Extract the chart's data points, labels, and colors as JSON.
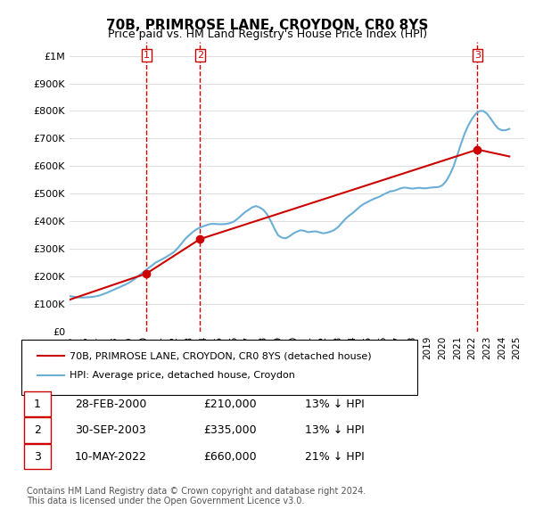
{
  "title": "70B, PRIMROSE LANE, CROYDON, CR0 8YS",
  "subtitle": "Price paid vs. HM Land Registry's House Price Index (HPI)",
  "xlabel": "",
  "ylabel": "",
  "ylim": [
    0,
    1050000
  ],
  "xlim_start": 1995.0,
  "xlim_end": 2025.5,
  "yticks": [
    0,
    100000,
    200000,
    300000,
    400000,
    500000,
    600000,
    700000,
    800000,
    900000,
    1000000
  ],
  "ytick_labels": [
    "£0",
    "£100K",
    "£200K",
    "£300K",
    "£400K",
    "£500K",
    "£600K",
    "£700K",
    "£800K",
    "£900K",
    "£1M"
  ],
  "xticks": [
    1995,
    1996,
    1997,
    1998,
    1999,
    2000,
    2001,
    2002,
    2003,
    2004,
    2005,
    2006,
    2007,
    2008,
    2009,
    2010,
    2011,
    2012,
    2013,
    2014,
    2015,
    2016,
    2017,
    2018,
    2019,
    2020,
    2021,
    2022,
    2023,
    2024,
    2025
  ],
  "hpi_color": "#6baed6",
  "sale_color": "#cc0000",
  "vline_color": "#cc0000",
  "background_color": "#ffffff",
  "grid_color": "#e0e0e0",
  "sale_points": [
    {
      "year": 2000.16,
      "price": 210000,
      "label": "1"
    },
    {
      "year": 2003.75,
      "price": 335000,
      "label": "2"
    },
    {
      "year": 2022.36,
      "price": 660000,
      "label": "3"
    }
  ],
  "legend_entries": [
    "70B, PRIMROSE LANE, CROYDON, CR0 8YS (detached house)",
    "HPI: Average price, detached house, Croydon"
  ],
  "table_rows": [
    {
      "num": "1",
      "date": "28-FEB-2000",
      "price": "£210,000",
      "hpi": "13% ↓ HPI"
    },
    {
      "num": "2",
      "date": "30-SEP-2003",
      "price": "£335,000",
      "hpi": "13% ↓ HPI"
    },
    {
      "num": "3",
      "date": "10-MAY-2022",
      "price": "£660,000",
      "hpi": "21% ↓ HPI"
    }
  ],
  "footnote": "Contains HM Land Registry data © Crown copyright and database right 2024.\nThis data is licensed under the Open Government Licence v3.0.",
  "hpi_data_x": [
    1995.0,
    1995.25,
    1995.5,
    1995.75,
    1996.0,
    1996.25,
    1996.5,
    1996.75,
    1997.0,
    1997.25,
    1997.5,
    1997.75,
    1998.0,
    1998.25,
    1998.5,
    1998.75,
    1999.0,
    1999.25,
    1999.5,
    1999.75,
    2000.0,
    2000.25,
    2000.5,
    2000.75,
    2001.0,
    2001.25,
    2001.5,
    2001.75,
    2002.0,
    2002.25,
    2002.5,
    2002.75,
    2003.0,
    2003.25,
    2003.5,
    2003.75,
    2004.0,
    2004.25,
    2004.5,
    2004.75,
    2005.0,
    2005.25,
    2005.5,
    2005.75,
    2006.0,
    2006.25,
    2006.5,
    2006.75,
    2007.0,
    2007.25,
    2007.5,
    2007.75,
    2008.0,
    2008.25,
    2008.5,
    2008.75,
    2009.0,
    2009.25,
    2009.5,
    2009.75,
    2010.0,
    2010.25,
    2010.5,
    2010.75,
    2011.0,
    2011.25,
    2011.5,
    2011.75,
    2012.0,
    2012.25,
    2012.5,
    2012.75,
    2013.0,
    2013.25,
    2013.5,
    2013.75,
    2014.0,
    2014.25,
    2014.5,
    2014.75,
    2015.0,
    2015.25,
    2015.5,
    2015.75,
    2016.0,
    2016.25,
    2016.5,
    2016.75,
    2017.0,
    2017.25,
    2017.5,
    2017.75,
    2018.0,
    2018.25,
    2018.5,
    2018.75,
    2019.0,
    2019.25,
    2019.5,
    2019.75,
    2020.0,
    2020.25,
    2020.5,
    2020.75,
    2021.0,
    2021.25,
    2021.5,
    2021.75,
    2022.0,
    2022.25,
    2022.5,
    2022.75,
    2023.0,
    2023.25,
    2023.5,
    2023.75,
    2024.0,
    2024.25,
    2024.5
  ],
  "hpi_data_y": [
    128000,
    126000,
    124000,
    123000,
    123000,
    124000,
    125000,
    127000,
    130000,
    135000,
    140000,
    146000,
    152000,
    158000,
    164000,
    170000,
    177000,
    186000,
    196000,
    207000,
    217000,
    228000,
    238000,
    249000,
    256000,
    263000,
    271000,
    279000,
    288000,
    302000,
    318000,
    335000,
    348000,
    360000,
    370000,
    377000,
    382000,
    387000,
    390000,
    390000,
    389000,
    389000,
    390000,
    393000,
    398000,
    408000,
    420000,
    432000,
    441000,
    450000,
    455000,
    450000,
    441000,
    425000,
    400000,
    372000,
    348000,
    340000,
    338000,
    345000,
    355000,
    362000,
    367000,
    365000,
    360000,
    362000,
    363000,
    360000,
    356000,
    358000,
    362000,
    368000,
    378000,
    393000,
    408000,
    420000,
    430000,
    442000,
    454000,
    463000,
    470000,
    477000,
    483000,
    488000,
    495000,
    502000,
    508000,
    510000,
    515000,
    520000,
    522000,
    520000,
    518000,
    520000,
    521000,
    519000,
    520000,
    522000,
    523000,
    524000,
    530000,
    545000,
    568000,
    598000,
    638000,
    680000,
    718000,
    748000,
    772000,
    790000,
    800000,
    800000,
    790000,
    772000,
    752000,
    736000,
    730000,
    730000,
    735000
  ],
  "sale_data_x": [
    1995.0,
    2000.16,
    2003.75,
    2022.36,
    2024.5
  ],
  "sale_data_y": [
    115000,
    210000,
    335000,
    660000,
    635000
  ]
}
